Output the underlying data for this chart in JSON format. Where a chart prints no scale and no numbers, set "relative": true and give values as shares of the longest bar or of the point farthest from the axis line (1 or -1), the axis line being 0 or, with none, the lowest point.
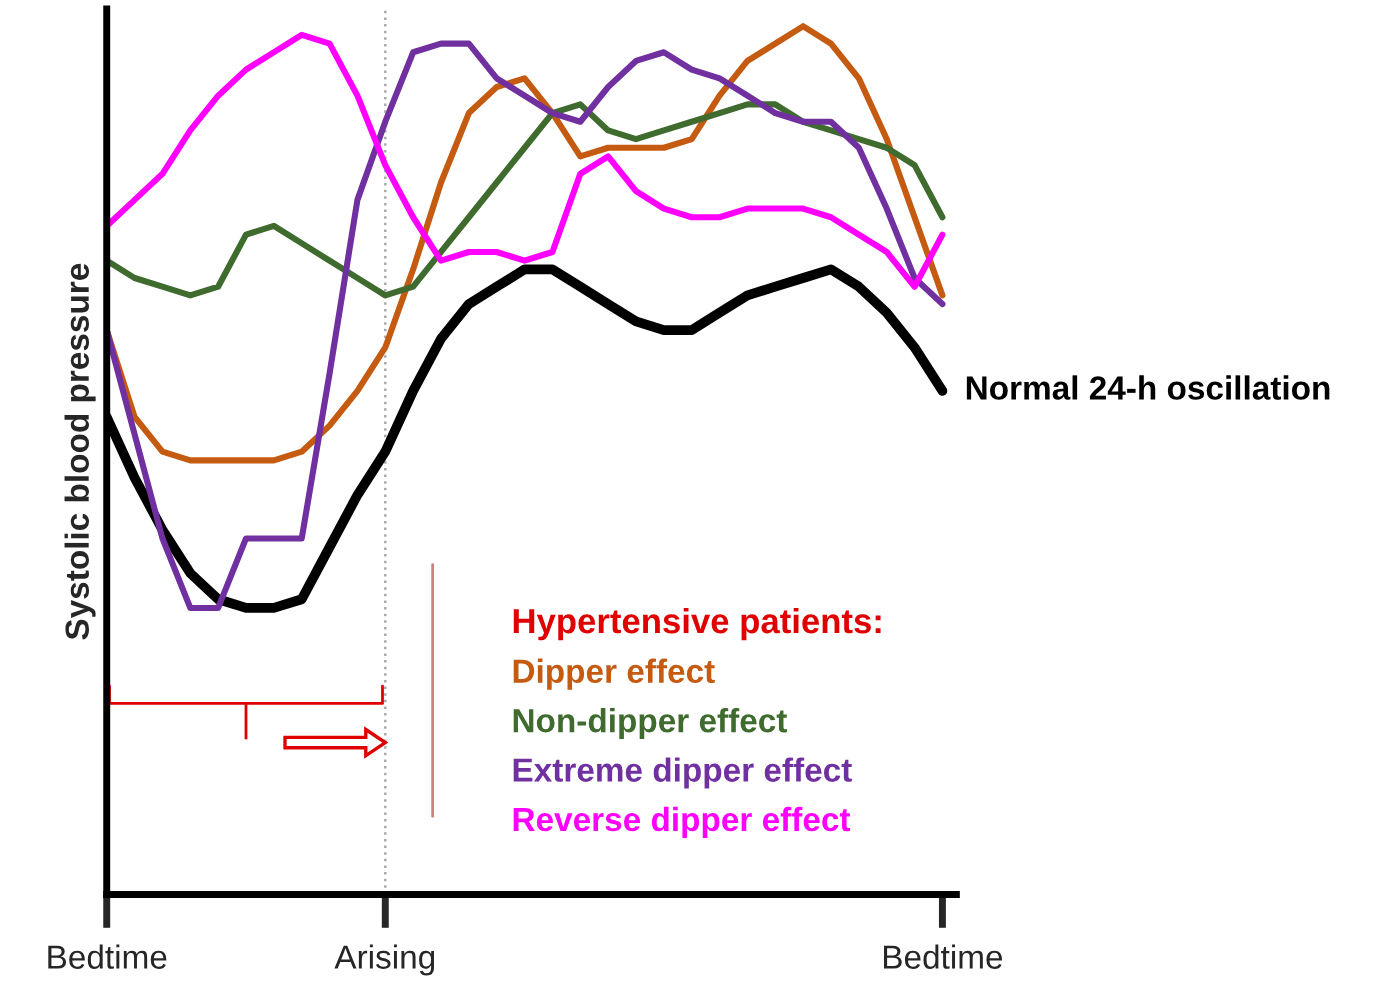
{
  "chart_data": {
    "type": "line",
    "relative": true,
    "ylabel": "Systolic blood pressure",
    "legend_title": "Hypertensive patients:",
    "legend": "bottom right",
    "grid": false,
    "marker": "none",
    "line_style": "solid",
    "categories": [
      "Bedtime",
      null,
      null,
      null,
      null,
      null,
      null,
      null,
      null,
      null,
      "Arising",
      null,
      null,
      null,
      null,
      null,
      null,
      null,
      null,
      null,
      null,
      null,
      null,
      null,
      null,
      null,
      null,
      null,
      null,
      null,
      "Bedtime"
    ],
    "ref_lines": [
      {
        "axis": "x",
        "value": "Arising",
        "label": null,
        "color": "#aaaaaa",
        "line_style": "dotted"
      }
    ],
    "series": [
      {
        "name": "Normal 24-h oscillation",
        "color": "#000000",
        "values": [
          0.55,
          0.48,
          0.42,
          0.37,
          0.34,
          0.33,
          0.33,
          0.34,
          0.4,
          0.46,
          0.51,
          0.58,
          0.64,
          0.68,
          0.7,
          0.72,
          0.72,
          0.7,
          0.68,
          0.66,
          0.65,
          0.65,
          0.67,
          0.69,
          0.7,
          0.71,
          0.72,
          0.7,
          0.67,
          0.63,
          0.58
        ]
      },
      {
        "name": "Dipper effect",
        "color": "#c55a11",
        "values": [
          0.65,
          0.55,
          0.51,
          0.5,
          0.5,
          0.5,
          0.5,
          0.51,
          0.54,
          0.58,
          0.63,
          0.72,
          0.82,
          0.9,
          0.93,
          0.94,
          0.9,
          0.85,
          0.86,
          0.86,
          0.86,
          0.87,
          0.92,
          0.96,
          0.98,
          1.0,
          0.98,
          0.94,
          0.87,
          0.78,
          0.69
        ]
      },
      {
        "name": "Non-dipper effect",
        "color": "#3f6b2e",
        "values": [
          0.73,
          0.71,
          0.7,
          0.69,
          0.7,
          0.76,
          0.77,
          0.75,
          0.73,
          0.71,
          0.69,
          0.7,
          0.74,
          0.78,
          0.82,
          0.86,
          0.9,
          0.91,
          0.88,
          0.87,
          0.88,
          0.89,
          0.9,
          0.91,
          0.91,
          0.89,
          0.88,
          0.87,
          0.86,
          0.84,
          0.78
        ]
      },
      {
        "name": "Extreme dipper effect",
        "color": "#7030a0",
        "values": [
          0.65,
          0.53,
          0.41,
          0.33,
          0.33,
          0.41,
          0.41,
          0.41,
          0.6,
          0.8,
          0.89,
          0.97,
          0.98,
          0.98,
          0.94,
          0.92,
          0.9,
          0.89,
          0.93,
          0.96,
          0.97,
          0.95,
          0.94,
          0.92,
          0.9,
          0.89,
          0.89,
          0.86,
          0.79,
          0.71,
          0.68
        ]
      },
      {
        "name": "Reverse dipper effect",
        "color": "#ff00ff",
        "values": [
          0.77,
          0.8,
          0.83,
          0.88,
          0.92,
          0.95,
          0.97,
          0.99,
          0.98,
          0.92,
          0.84,
          0.78,
          0.73,
          0.74,
          0.74,
          0.73,
          0.74,
          0.83,
          0.85,
          0.81,
          0.79,
          0.78,
          0.78,
          0.79,
          0.79,
          0.79,
          0.78,
          0.76,
          0.74,
          0.7,
          0.76
        ]
      }
    ]
  }
}
